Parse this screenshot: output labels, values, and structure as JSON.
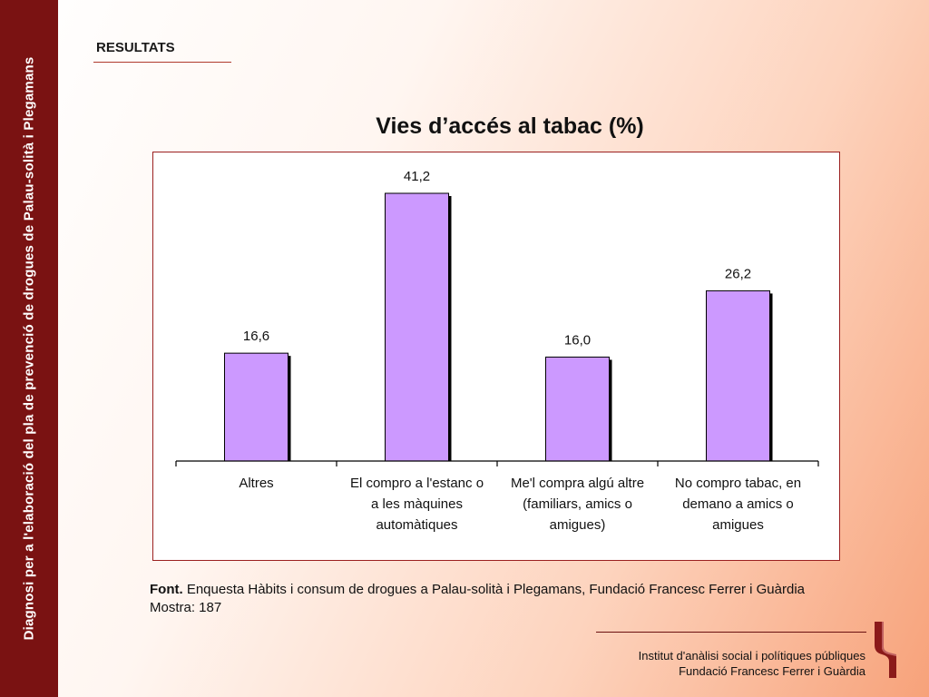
{
  "sidebar": {
    "text": "Diagnosi per a l'elaboració del pla de prevenció de drogues de Palau-solità i Plegamans"
  },
  "section": {
    "title": "RESULTATS"
  },
  "chart_data": {
    "type": "bar",
    "title": "Vies d’accés al tabac (%)",
    "categories": [
      [
        "Altres"
      ],
      [
        "El compro a l'estanc o",
        "a les màquines",
        "automàtiques"
      ],
      [
        "Me'l compra algú altre",
        "(familiars, amics o",
        "amigues)"
      ],
      [
        "No compro tabac, en",
        "demano a amics o",
        "amigues"
      ]
    ],
    "values": [
      16.6,
      41.2,
      16.0,
      26.2
    ],
    "value_labels": [
      "16,6",
      "41,2",
      "16,0",
      "26,2"
    ],
    "xlabel": "",
    "ylabel": "",
    "ylim": [
      0,
      45
    ],
    "grid": false,
    "bar_color": "#cc99ff",
    "bar_border": "#000000"
  },
  "source": {
    "label": "Font.",
    "text": " Enquesta Hàbits i consum de drogues a Palau-solità i Plegamans, Fundació Francesc Ferrer i Guàrdia",
    "sample": "Mostra: 187"
  },
  "footer": {
    "line1": "Institut d'anàlisi social i polítiques públiques",
    "line2": "Fundació Francesc Ferrer i Guàrdia"
  },
  "logo": {
    "icon": "foundation-logo-icon",
    "color": "#8b1a1a"
  }
}
